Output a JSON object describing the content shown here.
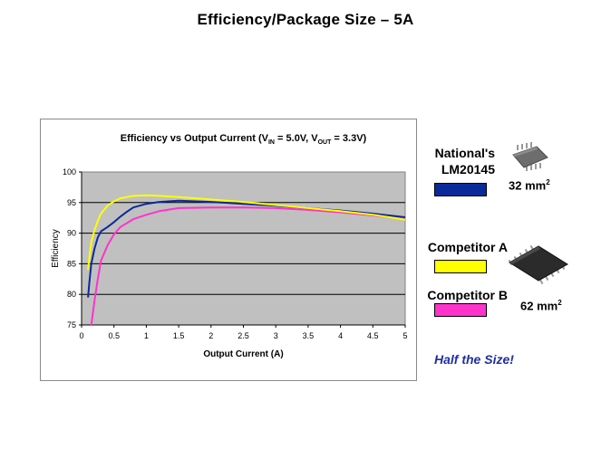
{
  "slide": {
    "title": "Efficiency/Package Size – 5A",
    "tagline": "Half the Size!"
  },
  "legend": {
    "national_line1": "National's",
    "national_line2": "LM20145",
    "competitor_a": "Competitor A",
    "competitor_b": "Competitor B",
    "colors": {
      "national": "#0a2a9a",
      "competitor_a": "#ffff00",
      "competitor_b": "#ff33cc"
    }
  },
  "package": {
    "small_area": "32 mm",
    "large_area": "62 mm",
    "superscript": "2",
    "small_chip_icon": "tssop-chip-icon",
    "large_chip_icon": "wide-tssop-chip-icon"
  },
  "chart_data": {
    "type": "line",
    "title_parts": {
      "pre": "Efficiency vs Output Current (V",
      "sub1": "IN",
      "mid": " = 5.0V, V",
      "sub2": "OUT",
      "post": " = 3.3V)"
    },
    "xlabel": "Output Current (A)",
    "ylabel": "Efficiency",
    "xlim": [
      0,
      5
    ],
    "ylim": [
      75,
      100
    ],
    "xticks": [
      "0",
      "0.5",
      "1",
      "1.5",
      "2",
      "2.5",
      "3",
      "3.5",
      "4",
      "4.5",
      "5"
    ],
    "yticks": [
      "75",
      "80",
      "85",
      "90",
      "95",
      "100"
    ],
    "plot_background": "#c0c0c0",
    "grid": "horizontal",
    "series": [
      {
        "key": "competitor_b",
        "color": "#ff33cc",
        "x": [
          0.15,
          0.2,
          0.25,
          0.3,
          0.4,
          0.5,
          0.6,
          0.8,
          1.0,
          1.2,
          1.5,
          2.0,
          2.5,
          3.0,
          3.5,
          4.0,
          4.5,
          5.0
        ],
        "y": [
          75,
          79,
          82.5,
          85.5,
          88,
          89.8,
          91,
          92.3,
          93,
          93.6,
          94.1,
          94.2,
          94.2,
          94.1,
          93.8,
          93.4,
          92.9,
          92.3
        ]
      },
      {
        "key": "national",
        "color": "#0a2a9a",
        "x": [
          0.1,
          0.12,
          0.15,
          0.2,
          0.25,
          0.3,
          0.4,
          0.5,
          0.6,
          0.7,
          0.8,
          1.0,
          1.2,
          1.5,
          2.0,
          2.5,
          3.0,
          3.5,
          4.0,
          4.5,
          5.0
        ],
        "y": [
          79.5,
          82,
          85,
          87.5,
          89.3,
          90.3,
          91,
          91.8,
          92.7,
          93.5,
          94.2,
          94.8,
          95.1,
          95.3,
          95.1,
          94.8,
          94.5,
          94.1,
          93.7,
          93.2,
          92.6
        ]
      },
      {
        "key": "competitor_a",
        "color": "#ffff00",
        "x": [
          0.1,
          0.12,
          0.15,
          0.2,
          0.25,
          0.3,
          0.4,
          0.5,
          0.6,
          0.7,
          0.8,
          1.0,
          1.2,
          1.5,
          2.0,
          2.5,
          3.0,
          3.5,
          4.0,
          4.5,
          5.0
        ],
        "y": [
          84,
          86,
          88.5,
          90.5,
          92,
          93.2,
          94.5,
          95.2,
          95.7,
          95.9,
          96.1,
          96.2,
          96.1,
          95.9,
          95.5,
          95.1,
          94.6,
          94.1,
          93.6,
          93.0,
          92.2
        ]
      }
    ]
  }
}
